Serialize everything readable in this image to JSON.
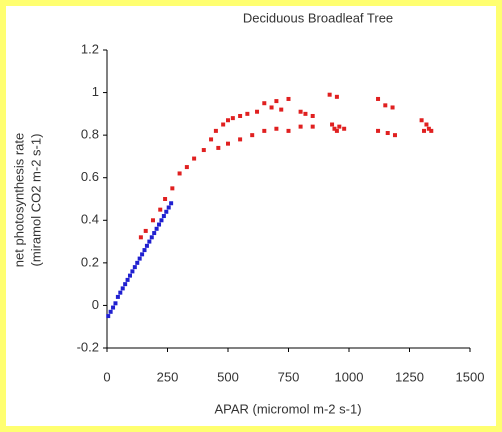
{
  "chart_data": {
    "type": "scatter",
    "title": "Deciduous Broadleaf Tree",
    "x_label": "APAR (micromol m-2 s-1)",
    "y_label": [
      "net photosynthesis rate",
      "(miramol CO2 m-2 s-1)"
    ],
    "xlim": [
      0,
      1500
    ],
    "xticks": [
      0,
      250,
      500,
      750,
      1000,
      1250,
      1500
    ],
    "ylim": [
      -0.2,
      1.2
    ],
    "yticks": [
      -0.2,
      0,
      0.2,
      0.4,
      0.6,
      0.8,
      1,
      1.2
    ],
    "series": [
      {
        "color": "#2020d0",
        "x": [
          5,
          15,
          25,
          35,
          45,
          55,
          65,
          75,
          85,
          95,
          105,
          115,
          125,
          135,
          145,
          155,
          165,
          175,
          185,
          195,
          205,
          215,
          225,
          235,
          245,
          255,
          265
        ],
        "y": [
          -0.05,
          -0.03,
          -0.01,
          0.01,
          0.04,
          0.06,
          0.08,
          0.1,
          0.12,
          0.14,
          0.16,
          0.18,
          0.2,
          0.22,
          0.24,
          0.26,
          0.28,
          0.3,
          0.32,
          0.34,
          0.36,
          0.38,
          0.4,
          0.42,
          0.44,
          0.46,
          0.48
        ]
      },
      {
        "color": "#e02020",
        "x": [
          140,
          160,
          190,
          220,
          240,
          270,
          300,
          330,
          360,
          400,
          430,
          450,
          480,
          500,
          520,
          550,
          580,
          620,
          650,
          680,
          700,
          720,
          750,
          800,
          820,
          850,
          460,
          500,
          550,
          600,
          650,
          700,
          750,
          800,
          850,
          920,
          950,
          930,
          940,
          950,
          960,
          980,
          1120,
          1150,
          1180,
          1120,
          1160,
          1190,
          1300,
          1320,
          1330,
          1310,
          1340
        ],
        "y": [
          0.32,
          0.35,
          0.4,
          0.45,
          0.5,
          0.55,
          0.62,
          0.65,
          0.69,
          0.73,
          0.78,
          0.82,
          0.85,
          0.87,
          0.88,
          0.89,
          0.9,
          0.91,
          0.95,
          0.93,
          0.96,
          0.92,
          0.97,
          0.91,
          0.9,
          0.89,
          0.74,
          0.76,
          0.78,
          0.8,
          0.82,
          0.83,
          0.82,
          0.84,
          0.84,
          0.99,
          0.98,
          0.85,
          0.83,
          0.82,
          0.84,
          0.83,
          0.97,
          0.94,
          0.93,
          0.82,
          0.81,
          0.8,
          0.87,
          0.85,
          0.83,
          0.82,
          0.82
        ]
      }
    ]
  }
}
